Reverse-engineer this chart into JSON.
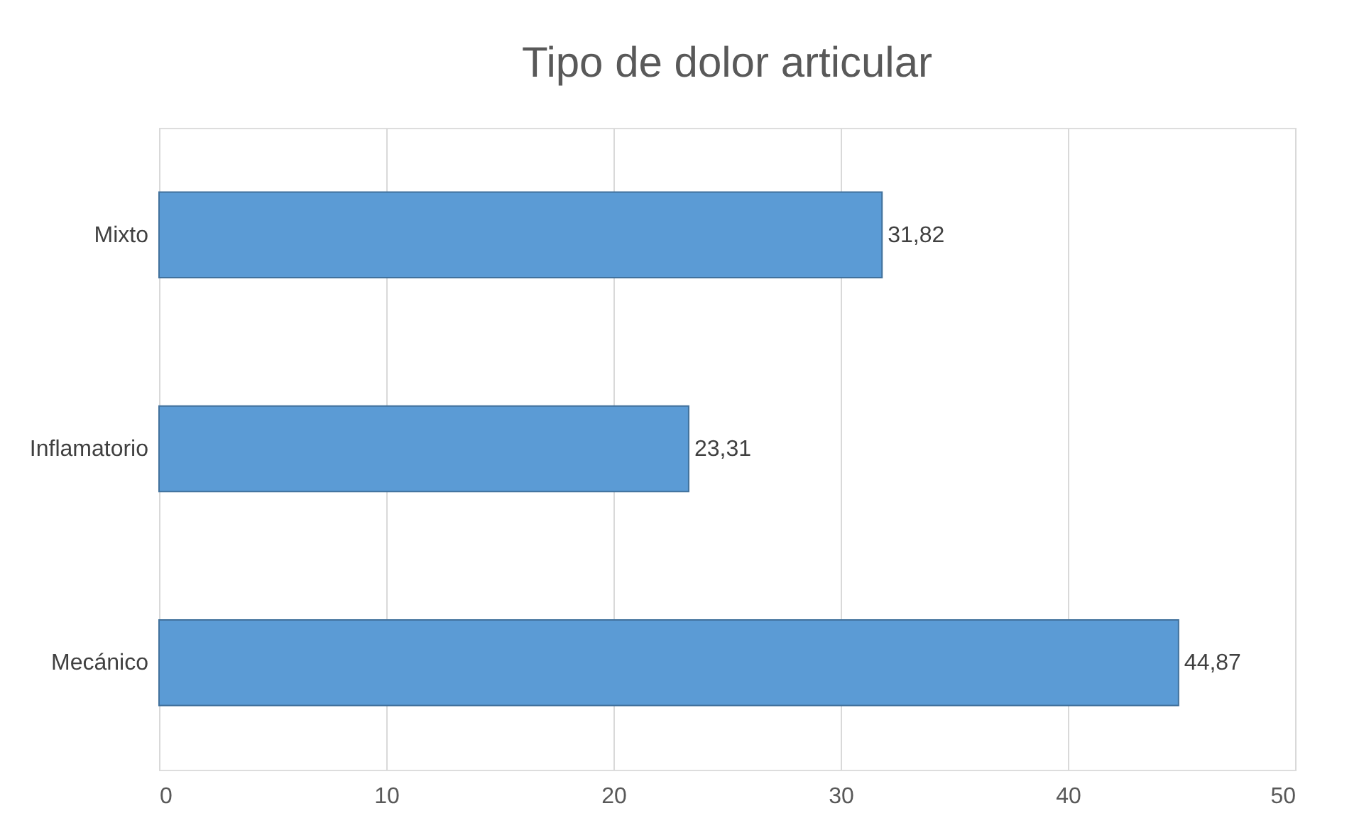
{
  "chart_data": {
    "type": "bar",
    "orientation": "horizontal",
    "title": "Tipo de dolor articular",
    "categories": [
      "Mixto",
      "Inflamatorio",
      "Mecánico"
    ],
    "values": [
      31.82,
      23.31,
      44.87
    ],
    "value_labels": [
      "31,82",
      "23,31",
      "44,87"
    ],
    "color": "#5b9bd5",
    "xlim": [
      0,
      50
    ],
    "xticks": [
      0,
      10,
      20,
      30,
      40,
      50
    ],
    "grid": "x"
  }
}
